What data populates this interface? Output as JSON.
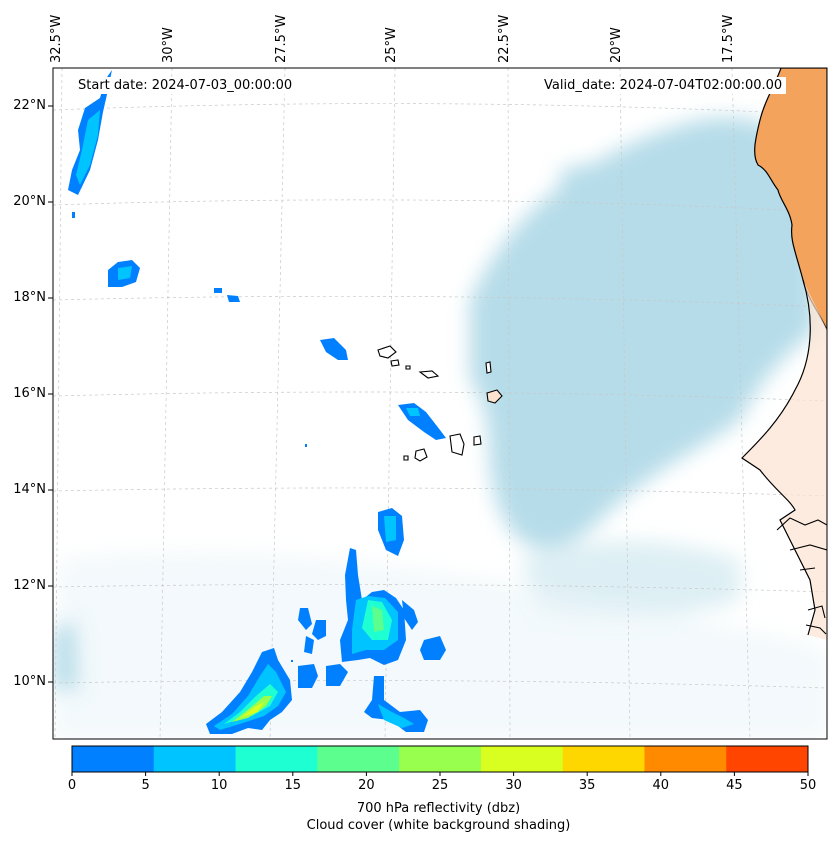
{
  "map": {
    "start_label": "Start date: 2024-07-03_00:00:00",
    "valid_label": "Valid_date: 2024-07-04T02:00:00.00",
    "lon_labels": [
      "32.5°W",
      "30°W",
      "27.5°W",
      "25°W",
      "22.5°W",
      "20°W",
      "17.5°W"
    ],
    "lat_labels": [
      "22°N",
      "20°N",
      "18°N",
      "16°N",
      "14°N",
      "12°N",
      "10°N"
    ],
    "land_color": "#f4a35c",
    "cloud_color": "#a9d6e5",
    "coastline_color": "#000000"
  },
  "colorbar": {
    "ticks": [
      "0",
      "5",
      "10",
      "15",
      "20",
      "25",
      "30",
      "35",
      "40",
      "45",
      "50"
    ],
    "colors": [
      "#0080ff",
      "#00c4ff",
      "#1effd2",
      "#5cff8e",
      "#98ff4e",
      "#d8ff20",
      "#ffd700",
      "#ff8a00",
      "#ff4500"
    ],
    "label_line1": "700 hPa reflectivity (dbz)",
    "label_line2": "Cloud cover (white background shading)"
  }
}
